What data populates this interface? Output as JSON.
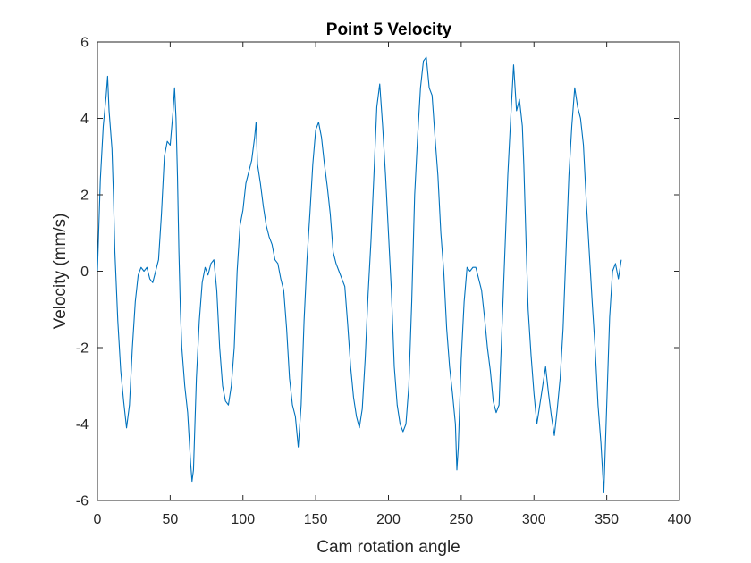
{
  "chart_data": {
    "type": "line",
    "title": "Point 5 Velocity",
    "xlabel": "Cam rotation angle",
    "ylabel": "Velocity (mm/s)",
    "xlim": [
      0,
      400
    ],
    "ylim": [
      -6,
      6
    ],
    "xticks": [
      "0",
      "50",
      "100",
      "150",
      "200",
      "250",
      "300",
      "350",
      "400"
    ],
    "yticks": [
      "-6",
      "-4",
      "-2",
      "0",
      "2",
      "4",
      "6"
    ],
    "grid": false,
    "legend": "none",
    "colors": {
      "series": "#0072BD",
      "axis": "#262626",
      "background": "#ffffff"
    },
    "series": [
      {
        "x": [
          0,
          2,
          4,
          6,
          7,
          8,
          9,
          10,
          11,
          12,
          14,
          16,
          18,
          20,
          22,
          24,
          26,
          28,
          30,
          32,
          34,
          36,
          38,
          40,
          42,
          44,
          46,
          48,
          50,
          52,
          53,
          54,
          55,
          56,
          57,
          58,
          60,
          62,
          64,
          65,
          66,
          67,
          68,
          70,
          72,
          74,
          76,
          78,
          80,
          82,
          84,
          86,
          88,
          90,
          92,
          94,
          96,
          98,
          100,
          102,
          104,
          106,
          108,
          109,
          110,
          112,
          114,
          116,
          118,
          120,
          122,
          124,
          126,
          128,
          130,
          132,
          134,
          136,
          138,
          140,
          142,
          144,
          146,
          148,
          150,
          152,
          154,
          156,
          158,
          160,
          162,
          164,
          166,
          168,
          170,
          172,
          174,
          176,
          178,
          180,
          182,
          184,
          186,
          188,
          190,
          192,
          194,
          196,
          198,
          200,
          202,
          204,
          206,
          208,
          210,
          212,
          214,
          216,
          218,
          220,
          222,
          224,
          226,
          228,
          230,
          232,
          234,
          236,
          238,
          240,
          242,
          244,
          246,
          247,
          248,
          250,
          252,
          254,
          256,
          258,
          260,
          262,
          264,
          266,
          268,
          270,
          272,
          274,
          276,
          278,
          280,
          282,
          284,
          286,
          288,
          290,
          292,
          293,
          294,
          295,
          296,
          298,
          300,
          302,
          304,
          306,
          308,
          310,
          312,
          314,
          316,
          318,
          320,
          322,
          324,
          326,
          328,
          330,
          332,
          334,
          336,
          338,
          340,
          342,
          344,
          346,
          348,
          350,
          352,
          354,
          356,
          358,
          360
        ],
        "y": [
          0,
          2.4,
          3.8,
          4.6,
          5.1,
          4.2,
          3.7,
          3.2,
          2.0,
          0.5,
          -1.3,
          -2.6,
          -3.4,
          -4.1,
          -3.5,
          -2.0,
          -0.8,
          -0.1,
          0.1,
          0.0,
          0.1,
          -0.2,
          -0.3,
          0.0,
          0.3,
          1.5,
          3.0,
          3.4,
          3.3,
          4.2,
          4.8,
          4.0,
          2.5,
          0.5,
          -1.0,
          -2.0,
          -3.0,
          -3.7,
          -5.0,
          -5.5,
          -5.2,
          -4.0,
          -2.8,
          -1.3,
          -0.3,
          0.1,
          -0.1,
          0.2,
          0.3,
          -0.5,
          -2.0,
          -3.0,
          -3.4,
          -3.5,
          -3.0,
          -2.0,
          0.0,
          1.2,
          1.6,
          2.3,
          2.6,
          2.9,
          3.5,
          3.9,
          2.8,
          2.3,
          1.7,
          1.2,
          0.9,
          0.7,
          0.3,
          0.2,
          -0.2,
          -0.5,
          -1.5,
          -2.8,
          -3.5,
          -3.8,
          -4.6,
          -3.5,
          -1.3,
          0.3,
          1.5,
          2.8,
          3.7,
          3.9,
          3.5,
          2.8,
          2.2,
          1.5,
          0.5,
          0.2,
          0.0,
          -0.2,
          -0.4,
          -1.4,
          -2.5,
          -3.3,
          -3.8,
          -4.1,
          -3.6,
          -2.3,
          -0.6,
          0.8,
          2.5,
          4.3,
          4.9,
          3.8,
          2.5,
          1.0,
          -0.5,
          -2.5,
          -3.5,
          -4.0,
          -4.2,
          -4.0,
          -3.0,
          -0.8,
          2.0,
          3.5,
          4.8,
          5.5,
          5.6,
          4.8,
          4.6,
          3.5,
          2.5,
          1.0,
          0.0,
          -1.5,
          -2.5,
          -3.2,
          -4.0,
          -5.2,
          -4.6,
          -2.3,
          -0.8,
          0.1,
          0.0,
          0.1,
          0.1,
          -0.2,
          -0.5,
          -1.2,
          -2.0,
          -2.6,
          -3.4,
          -3.7,
          -3.5,
          -1.5,
          0.5,
          2.5,
          4.0,
          5.4,
          4.2,
          4.5,
          3.8,
          2.8,
          1.5,
          0.2,
          -1.0,
          -2.2,
          -3.2,
          -4.0,
          -3.5,
          -3.0,
          -2.5,
          -3.2,
          -3.8,
          -4.3,
          -3.6,
          -2.8,
          -1.5,
          0.5,
          2.5,
          3.8,
          4.8,
          4.3,
          4.0,
          3.3,
          1.8,
          0.5,
          -0.8,
          -2.0,
          -3.5,
          -4.5,
          -5.8,
          -3.5,
          -1.2,
          0.0,
          0.2,
          -0.2,
          0.3
        ]
      }
    ]
  }
}
